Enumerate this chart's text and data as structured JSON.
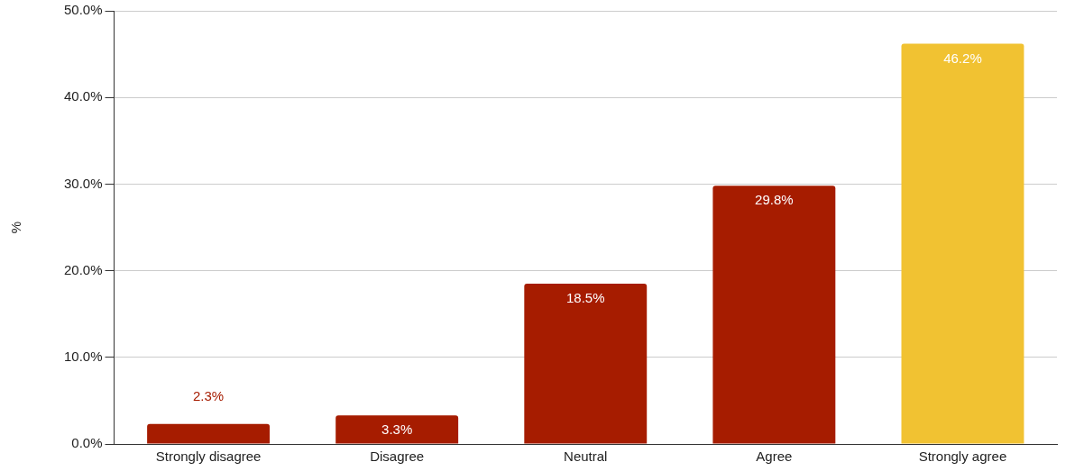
{
  "chart_data": {
    "type": "bar",
    "ylabel": "%",
    "categories": [
      "Strongly disagree",
      "Disagree",
      "Neutral",
      "Agree",
      "Strongly agree"
    ],
    "values": [
      2.3,
      3.3,
      18.5,
      29.8,
      46.2
    ],
    "colors": [
      "#a61c00",
      "#a61c00",
      "#a61c00",
      "#a61c00",
      "#f1c232"
    ],
    "value_labels": [
      "2.3%",
      "3.3%",
      "18.5%",
      "29.8%",
      "46.2%"
    ],
    "ylim": [
      0,
      50
    ],
    "yticks": [
      {
        "value": 0,
        "label": "0.0%"
      },
      {
        "value": 10,
        "label": "10.0%"
      },
      {
        "value": 20,
        "label": "20.0%"
      },
      {
        "value": 30,
        "label": "30.0%"
      },
      {
        "value": 40,
        "label": "40.0%"
      },
      {
        "value": 50,
        "label": "50.0%"
      }
    ],
    "grid": "y"
  }
}
